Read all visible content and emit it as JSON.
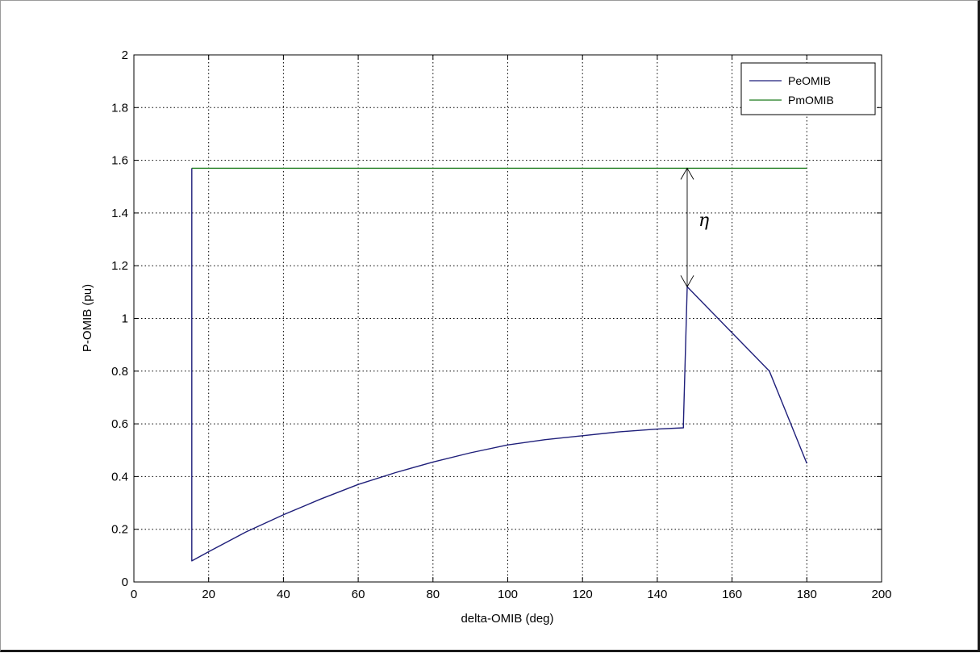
{
  "chart_data": {
    "type": "line",
    "title": "",
    "xlabel": "delta-OMIB (deg)",
    "ylabel": "P-OMIB (pu)",
    "xlim": [
      0,
      200
    ],
    "ylim": [
      0,
      2
    ],
    "xticks": [
      0,
      20,
      40,
      60,
      80,
      100,
      120,
      140,
      160,
      180,
      200
    ],
    "yticks": [
      0,
      0.2,
      0.4,
      0.6,
      0.8,
      1,
      1.2,
      1.4,
      1.6,
      1.8,
      2
    ],
    "xtick_labels": [
      "0",
      "20",
      "40",
      "60",
      "80",
      "100",
      "120",
      "140",
      "160",
      "180",
      "200"
    ],
    "ytick_labels": [
      "0",
      "0.2",
      "0.4",
      "0.6",
      "0.8",
      "1",
      "1.2",
      "1.4",
      "1.6",
      "1.8",
      "2"
    ],
    "grid": true,
    "legend_position": "top-right",
    "series": [
      {
        "name": "PeOMIB",
        "color": "#1f1f7a",
        "x": [
          15.5,
          15.5,
          20,
          30,
          40,
          50,
          60,
          70,
          80,
          90,
          100,
          110,
          120,
          130,
          140,
          147,
          147,
          148,
          170,
          180
        ],
        "y": [
          1.57,
          0.08,
          0.115,
          0.19,
          0.255,
          0.315,
          0.37,
          0.415,
          0.455,
          0.49,
          0.52,
          0.54,
          0.555,
          0.57,
          0.58,
          0.585,
          0.6,
          1.12,
          0.8,
          0.45
        ]
      },
      {
        "name": "PmOMIB",
        "color": "#1a7a1a",
        "x": [
          15.5,
          180
        ],
        "y": [
          1.57,
          1.57
        ]
      }
    ],
    "annotations": [
      {
        "text": "η",
        "type": "double-arrow",
        "x": 148,
        "y_from": 1.12,
        "y_to": 1.57
      }
    ]
  }
}
